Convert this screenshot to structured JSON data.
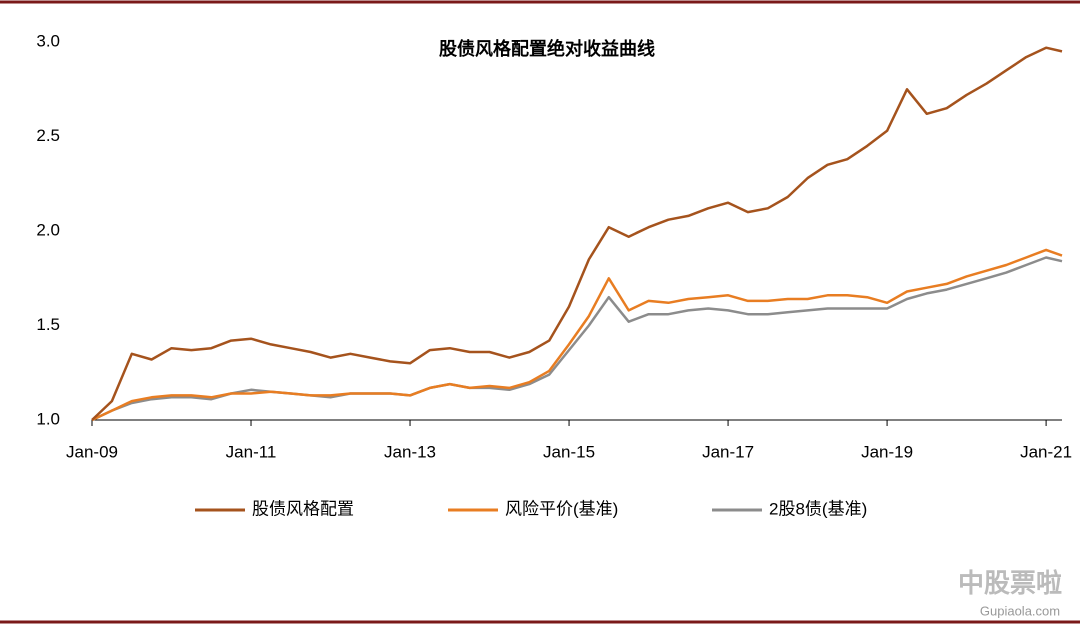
{
  "chart_data": {
    "type": "line",
    "title": "股债风格配置绝对收益曲线",
    "x": [
      2009,
      2009.25,
      2009.5,
      2009.75,
      2010,
      2010.25,
      2010.5,
      2010.75,
      2011,
      2011.25,
      2011.5,
      2011.75,
      2012,
      2012.25,
      2012.5,
      2012.75,
      2013,
      2013.25,
      2013.5,
      2013.75,
      2014,
      2014.25,
      2014.5,
      2014.75,
      2015,
      2015.25,
      2015.5,
      2015.75,
      2016,
      2016.25,
      2016.5,
      2016.75,
      2017,
      2017.25,
      2017.5,
      2017.75,
      2018,
      2018.25,
      2018.5,
      2018.75,
      2019,
      2019.25,
      2019.5,
      2019.75,
      2020,
      2020.25,
      2020.5,
      2020.75,
      2021,
      2021.2
    ],
    "series": [
      {
        "name": "股债风格配置",
        "color": "#a5531d",
        "values": [
          1.0,
          1.1,
          1.35,
          1.32,
          1.38,
          1.37,
          1.38,
          1.42,
          1.43,
          1.4,
          1.38,
          1.36,
          1.33,
          1.35,
          1.33,
          1.31,
          1.3,
          1.37,
          1.38,
          1.36,
          1.36,
          1.33,
          1.36,
          1.42,
          1.6,
          1.85,
          2.02,
          1.97,
          2.02,
          2.06,
          2.08,
          2.12,
          2.15,
          2.1,
          2.12,
          2.18,
          2.28,
          2.35,
          2.38,
          2.45,
          2.53,
          2.75,
          2.62,
          2.65,
          2.72,
          2.78,
          2.85,
          2.92,
          2.97,
          2.95
        ]
      },
      {
        "name": "风险平价(基准)",
        "color": "#e87d22",
        "values": [
          1.0,
          1.05,
          1.1,
          1.12,
          1.13,
          1.13,
          1.12,
          1.14,
          1.14,
          1.15,
          1.14,
          1.13,
          1.13,
          1.14,
          1.14,
          1.14,
          1.13,
          1.17,
          1.19,
          1.17,
          1.18,
          1.17,
          1.2,
          1.26,
          1.4,
          1.55,
          1.75,
          1.58,
          1.63,
          1.62,
          1.64,
          1.65,
          1.66,
          1.63,
          1.63,
          1.64,
          1.64,
          1.66,
          1.66,
          1.65,
          1.62,
          1.68,
          1.7,
          1.72,
          1.76,
          1.79,
          1.82,
          1.86,
          1.9,
          1.87
        ]
      },
      {
        "name": "2股8债(基准)",
        "color": "#8c8c8c",
        "values": [
          1.0,
          1.05,
          1.09,
          1.11,
          1.12,
          1.12,
          1.11,
          1.14,
          1.16,
          1.15,
          1.14,
          1.13,
          1.12,
          1.14,
          1.14,
          1.14,
          1.13,
          1.17,
          1.19,
          1.17,
          1.17,
          1.16,
          1.19,
          1.24,
          1.37,
          1.5,
          1.65,
          1.52,
          1.56,
          1.56,
          1.58,
          1.59,
          1.58,
          1.56,
          1.56,
          1.57,
          1.58,
          1.59,
          1.59,
          1.59,
          1.59,
          1.64,
          1.67,
          1.69,
          1.72,
          1.75,
          1.78,
          1.82,
          1.86,
          1.84
        ]
      }
    ],
    "xlim": [
      2009,
      2021.2
    ],
    "xticks": [
      {
        "value": 2009,
        "label": "Jan-09"
      },
      {
        "value": 2011,
        "label": "Jan-11"
      },
      {
        "value": 2013,
        "label": "Jan-13"
      },
      {
        "value": 2015,
        "label": "Jan-15"
      },
      {
        "value": 2017,
        "label": "Jan-17"
      },
      {
        "value": 2019,
        "label": "Jan-19"
      },
      {
        "value": 2021,
        "label": "Jan-21"
      }
    ],
    "ylim": [
      1,
      3
    ],
    "yticks": [
      {
        "value": 1,
        "label": "1.0"
      },
      1.5,
      {
        "value": 2,
        "label": "2.0"
      },
      2.5,
      {
        "value": 3,
        "label": "3.0"
      }
    ],
    "grid": false,
    "legend": "bottom"
  },
  "watermark": {
    "text": "中股票啦",
    "url": "Gupiaola.com"
  }
}
